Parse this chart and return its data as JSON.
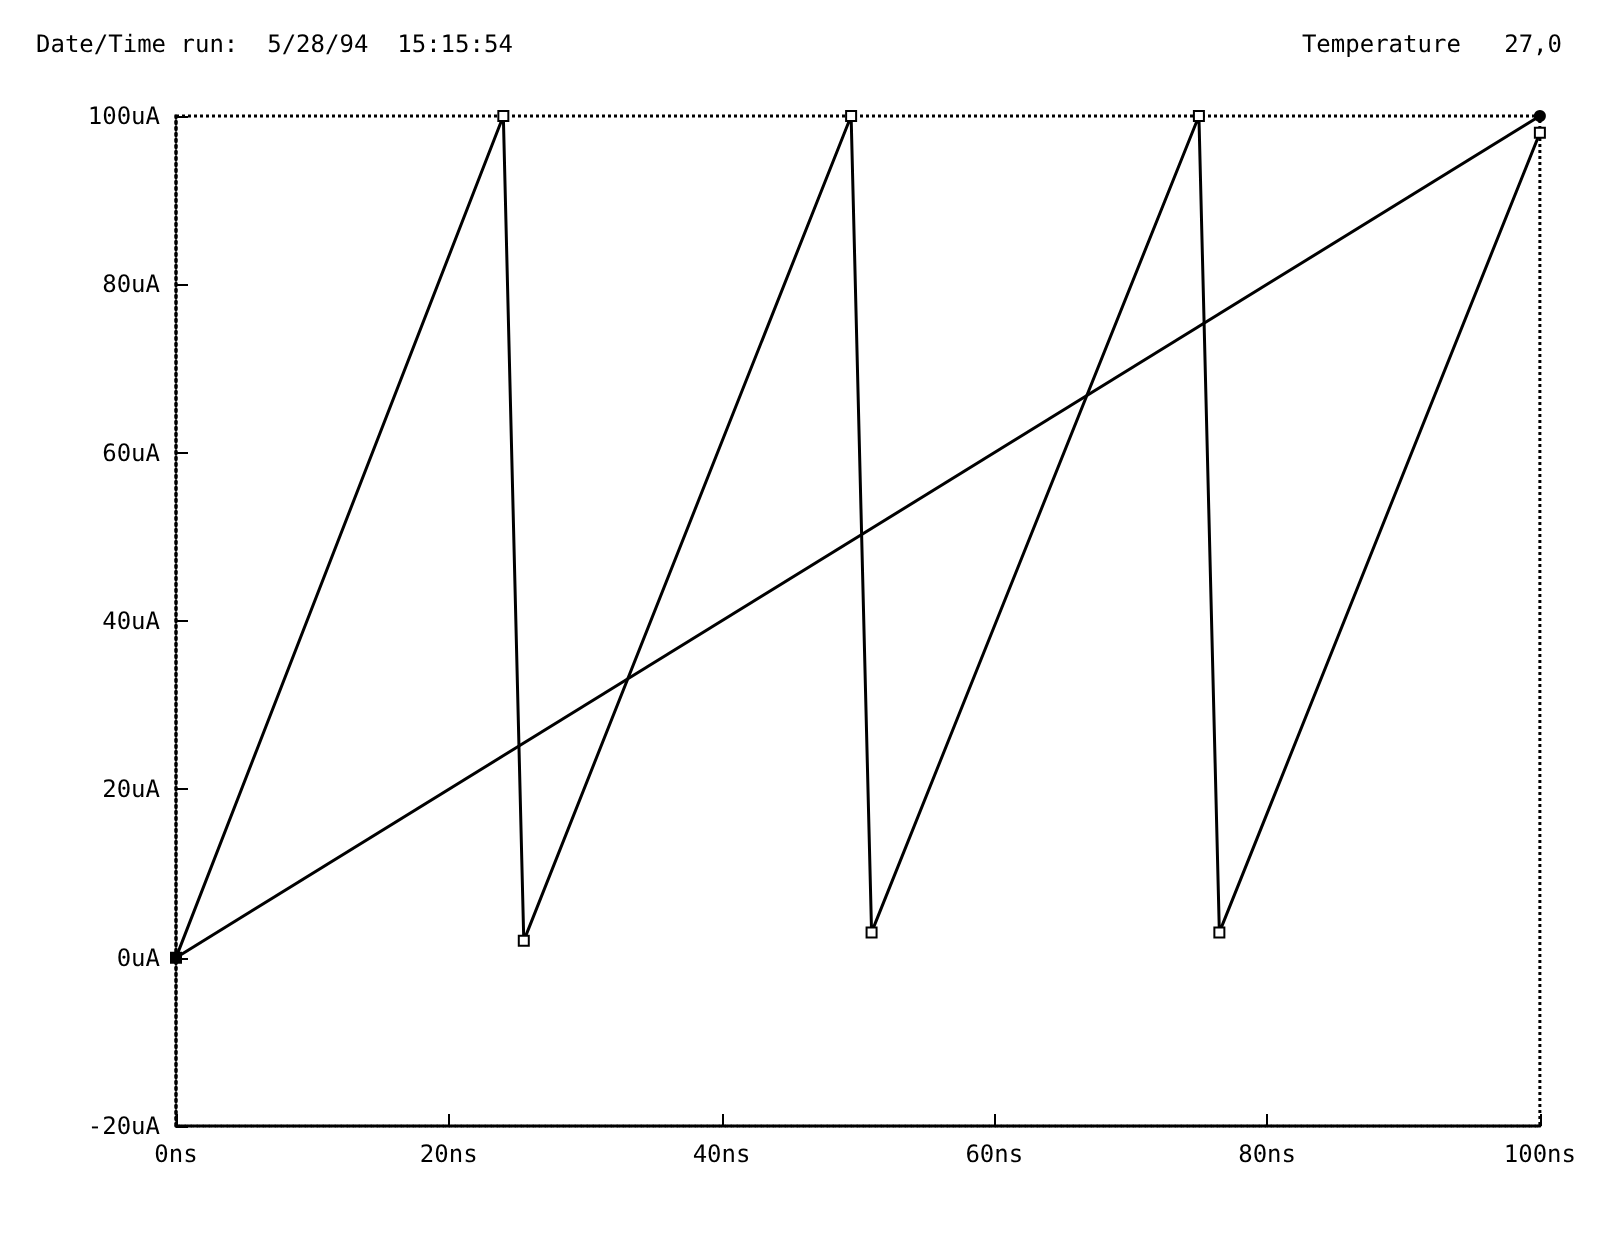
{
  "chart_data": {
    "type": "line",
    "annotations": [
      "Date/Time run:  5/28/94  15:15:54",
      "Temperature   27,0"
    ],
    "series": [
      {
        "color": "#000000",
        "marker": "square",
        "x": [
          0,
          24,
          25.5,
          49.5,
          51,
          75,
          76.5,
          100
        ],
        "values": [
          0,
          100,
          2,
          100,
          3,
          100,
          3,
          98
        ]
      },
      {
        "color": "#000000",
        "marker": "circle",
        "x": [
          0,
          100
        ],
        "values": [
          0,
          100
        ]
      }
    ],
    "xlim": [
      0,
      100
    ],
    "xticks": [
      {
        "value": 0,
        "label": "0ns"
      },
      {
        "value": 20,
        "label": "20ns"
      },
      {
        "value": 40,
        "label": "40ns"
      },
      {
        "value": 60,
        "label": "60ns"
      },
      {
        "value": 80,
        "label": "80ns"
      },
      {
        "value": 100,
        "label": "100ns"
      }
    ],
    "ylim": [
      -20,
      100
    ],
    "yticks": [
      {
        "value": -20,
        "label": "-20uA"
      },
      {
        "value": 0,
        "label": "0uA"
      },
      {
        "value": 20,
        "label": "20uA"
      },
      {
        "value": 40,
        "label": "40uA"
      },
      {
        "value": 60,
        "label": "60uA"
      },
      {
        "value": 80,
        "label": "80uA"
      },
      {
        "value": 100,
        "label": "100uA"
      }
    ],
    "grid": false,
    "line_style": "solid"
  }
}
